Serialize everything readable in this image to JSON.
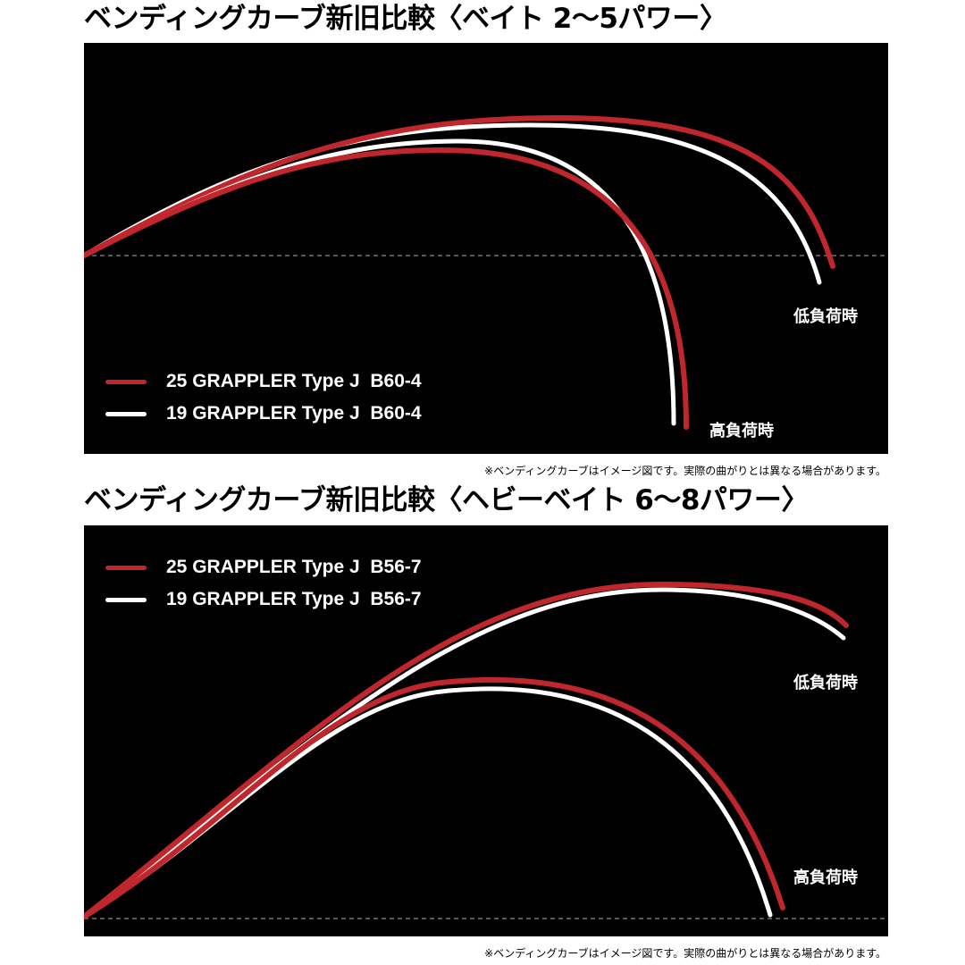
{
  "colors": {
    "new_model": "#c0272d",
    "old_model": "#ffffff",
    "panel_bg": "#000000"
  },
  "sections": [
    {
      "title": "ベンディングカーブ新旧比較〈ベイト 2〜5パワー〉",
      "legend": [
        {
          "label": "25 GRAPPLER Type J  B60-4",
          "color": "#c0272d"
        },
        {
          "label": "19 GRAPPLER Type J  B60-4",
          "color": "#ffffff"
        }
      ],
      "low_load_label": "低負荷時",
      "high_load_label": "高負荷時",
      "note": "※ベンディングカーブはイメージ図です。実際の曲がりとは異なる場合があります。"
    },
    {
      "title": "ベンディングカーブ新旧比較〈ヘビーベイト 6〜8パワー〉",
      "legend": [
        {
          "label": "25 GRAPPLER Type J  B56-7",
          "color": "#c0272d"
        },
        {
          "label": "19 GRAPPLER Type J  B56-7",
          "color": "#ffffff"
        }
      ],
      "low_load_label": "低負荷時",
      "high_load_label": "高負荷時",
      "note": "※ベンディングカーブはイメージ図です。実際の曲がりとは異なる場合があります。"
    }
  ]
}
